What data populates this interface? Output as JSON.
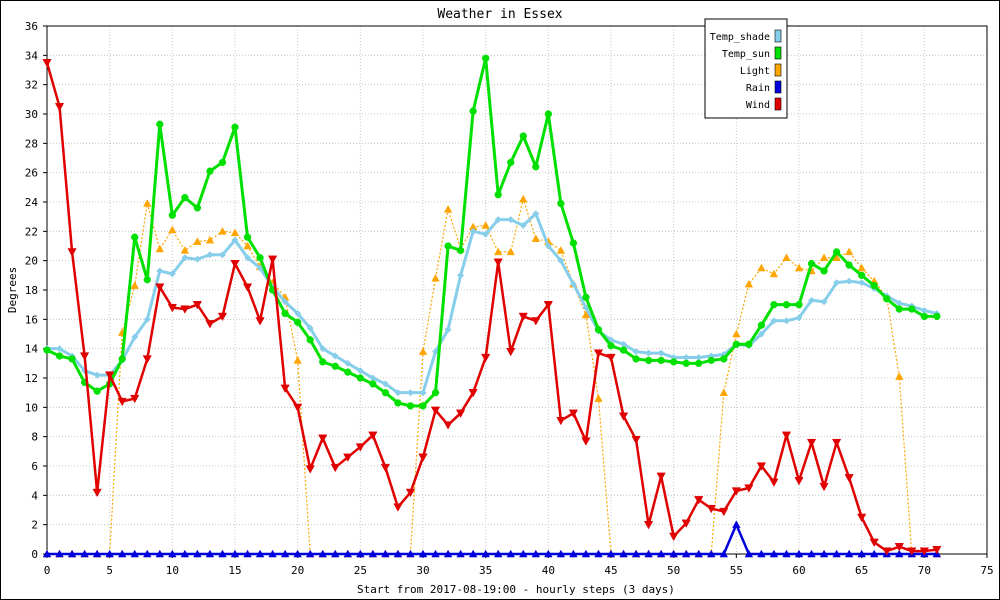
{
  "colors": {
    "Temp_shade": "#87ceeb",
    "Temp_sun": "#00e000",
    "Light": "#ffa500",
    "Rain": "#0000dd",
    "Wind": "#e00000"
  },
  "chart_data": {
    "type": "line",
    "title": "Weather in Essex",
    "xlabel": "Start from 2017-08-19:00 - hourly steps (3 days)",
    "ylabel": "Degrees",
    "xlim": [
      0,
      75
    ],
    "ylim": [
      0,
      36
    ],
    "x_ticks": [
      0,
      5,
      10,
      15,
      20,
      25,
      30,
      35,
      40,
      45,
      50,
      55,
      60,
      65,
      70,
      75
    ],
    "y_ticks": [
      0,
      2,
      4,
      6,
      8,
      10,
      12,
      14,
      16,
      18,
      20,
      22,
      24,
      26,
      28,
      30,
      32,
      34,
      36
    ],
    "grid": true,
    "legend_position": "top-right",
    "series": [
      {
        "name": "Temp_shade",
        "marker": "diamond",
        "line": "solid",
        "values": [
          14.0,
          14.0,
          13.5,
          12.5,
          12.2,
          12.2,
          13.2,
          14.8,
          16.0,
          19.3,
          19.1,
          20.2,
          20.1,
          20.4,
          20.4,
          21.4,
          20.2,
          19.5,
          18.2,
          17.2,
          16.4,
          15.4,
          14.0,
          13.5,
          13.0,
          12.5,
          12.0,
          11.6,
          11.0,
          11.0,
          11.0,
          13.8,
          15.3,
          19.0,
          22.0,
          21.8,
          22.8,
          22.8,
          22.4,
          23.2,
          21.0,
          20.0,
          18.4,
          16.8,
          15.2,
          14.6,
          14.3,
          13.8,
          13.7,
          13.7,
          13.4,
          13.4,
          13.4,
          13.5,
          13.6,
          14.3,
          14.2,
          15.0,
          15.9,
          15.9,
          16.1,
          17.3,
          17.2,
          18.5,
          18.6,
          18.5,
          18.1,
          17.6,
          17.1,
          16.9,
          16.6,
          16.4
        ]
      },
      {
        "name": "Temp_sun",
        "marker": "circle",
        "line": "solid",
        "values": [
          13.9,
          13.5,
          13.3,
          11.7,
          11.1,
          11.6,
          13.3,
          21.6,
          18.7,
          29.3,
          23.1,
          24.3,
          23.6,
          26.1,
          26.7,
          29.1,
          21.6,
          20.2,
          18.0,
          16.4,
          15.8,
          14.6,
          13.1,
          12.8,
          12.4,
          12.0,
          11.6,
          11.0,
          10.3,
          10.1,
          10.1,
          11.0,
          21.0,
          20.7,
          30.2,
          33.8,
          24.5,
          26.7,
          28.5,
          26.4,
          30.0,
          23.9,
          21.2,
          17.5,
          15.3,
          14.2,
          13.9,
          13.3,
          13.2,
          13.2,
          13.1,
          13.0,
          13.0,
          13.2,
          13.3,
          14.3,
          14.3,
          15.6,
          17.0,
          17.0,
          17.0,
          19.8,
          19.3,
          20.6,
          19.7,
          19.0,
          18.3,
          17.4,
          16.7,
          16.7,
          16.2,
          16.2
        ]
      },
      {
        "name": "Light",
        "marker": "triangle-up",
        "line": "dotted",
        "values": [
          0,
          0,
          0,
          0,
          0,
          0,
          15.1,
          18.3,
          23.9,
          20.8,
          22.1,
          20.7,
          21.3,
          21.4,
          22.0,
          21.9,
          21.0,
          19.6,
          18.5,
          17.5,
          13.2,
          0,
          0,
          0,
          0,
          0,
          0,
          0,
          0,
          0,
          13.8,
          18.8,
          23.5,
          20.8,
          22.3,
          22.4,
          20.6,
          20.6,
          24.2,
          21.5,
          21.3,
          20.7,
          18.4,
          16.3,
          10.6,
          0,
          0,
          0,
          0,
          0,
          0,
          0,
          0,
          0,
          11.0,
          15.0,
          18.4,
          19.5,
          19.1,
          20.2,
          19.5,
          19.3,
          20.2,
          20.2,
          20.6,
          19.5,
          18.6,
          17.5,
          12.1,
          0,
          0,
          0
        ]
      },
      {
        "name": "Rain",
        "marker": "triangle-up",
        "line": "solid",
        "values": [
          0,
          0,
          0,
          0,
          0,
          0,
          0,
          0,
          0,
          0,
          0,
          0,
          0,
          0,
          0,
          0,
          0,
          0,
          0,
          0,
          0,
          0,
          0,
          0,
          0,
          0,
          0,
          0,
          0,
          0,
          0,
          0,
          0,
          0,
          0,
          0,
          0,
          0,
          0,
          0,
          0,
          0,
          0,
          0,
          0,
          0,
          0,
          0,
          0,
          0,
          0,
          0,
          0,
          0,
          0,
          2.0,
          0,
          0,
          0,
          0,
          0,
          0,
          0,
          0,
          0,
          0,
          0,
          0,
          0,
          0,
          0,
          0
        ]
      },
      {
        "name": "Wind",
        "marker": "triangle-down",
        "line": "solid",
        "values": [
          33.5,
          30.5,
          20.6,
          13.5,
          4.2,
          12.2,
          10.4,
          10.6,
          13.3,
          18.2,
          16.8,
          16.7,
          17.0,
          15.7,
          16.2,
          19.8,
          18.2,
          15.9,
          20.1,
          11.3,
          10.0,
          5.8,
          7.9,
          5.9,
          6.6,
          7.3,
          8.1,
          5.9,
          3.2,
          4.2,
          6.6,
          9.8,
          8.8,
          9.6,
          11.0,
          13.4,
          19.9,
          13.8,
          16.2,
          15.9,
          17.0,
          9.1,
          9.6,
          7.7,
          13.7,
          13.4,
          9.4,
          7.8,
          2.0,
          5.3,
          1.2,
          2.1,
          3.7,
          3.1,
          2.9,
          4.3,
          4.5,
          6.0,
          4.9,
          8.1,
          5.0,
          7.6,
          4.6,
          7.6,
          5.2,
          2.5,
          0.8,
          0.2,
          0.5,
          0.2,
          0.2,
          0.3
        ]
      }
    ]
  }
}
